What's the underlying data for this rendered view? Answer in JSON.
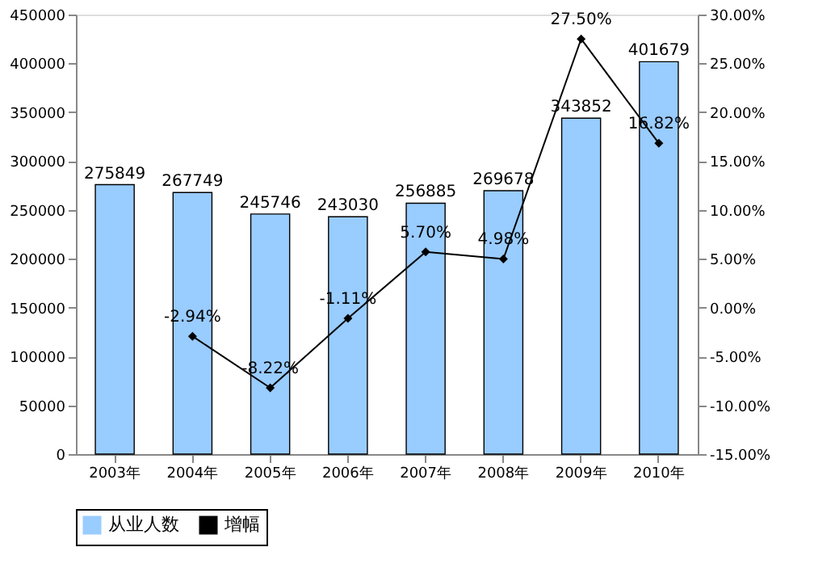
{
  "chart_data": {
    "type": "bar",
    "categories": [
      "2003年",
      "2004年",
      "2005年",
      "2006年",
      "2007年",
      "2008年",
      "2009年",
      "2010年"
    ],
    "series": [
      {
        "name": "从业人数",
        "color": "#99ccff",
        "values": [
          275849,
          267749,
          245746,
          243030,
          256885,
          269678,
          343852,
          401679
        ],
        "value_labels": [
          "275849",
          "267749",
          "245746",
          "243030",
          "256885",
          "269678",
          "343852",
          "401679"
        ]
      },
      {
        "name": "增幅",
        "type": "line",
        "axis": "y2",
        "color": "#000000",
        "marker": "diamond",
        "values": [
          null,
          -2.94,
          -8.22,
          -1.11,
          5.7,
          4.98,
          27.5,
          16.82
        ],
        "value_labels": [
          null,
          "-2.94%",
          "-8.22%",
          "-1.11%",
          "5.70%",
          "4.98%",
          "27.50%",
          "16.82%"
        ]
      }
    ],
    "ylim": [
      0,
      450000
    ],
    "yticks": [
      0,
      50000,
      100000,
      150000,
      200000,
      250000,
      300000,
      350000,
      400000,
      450000
    ],
    "y2lim": [
      -15,
      30
    ],
    "y2ticks": [
      {
        "value": -15,
        "label": "-15.00%"
      },
      {
        "value": -10,
        "label": "-10.00%"
      },
      {
        "value": -5,
        "label": "-5.00%"
      },
      {
        "value": 0,
        "label": "0.00%"
      },
      {
        "value": 5,
        "label": "5.00%"
      },
      {
        "value": 10,
        "label": "10.00%"
      },
      {
        "value": 15,
        "label": "15.00%"
      },
      {
        "value": 20,
        "label": "20.00%"
      },
      {
        "value": 25,
        "label": "25.00%"
      },
      {
        "value": 30,
        "label": "30.00%"
      }
    ],
    "grid": false,
    "legend": "bottom"
  }
}
